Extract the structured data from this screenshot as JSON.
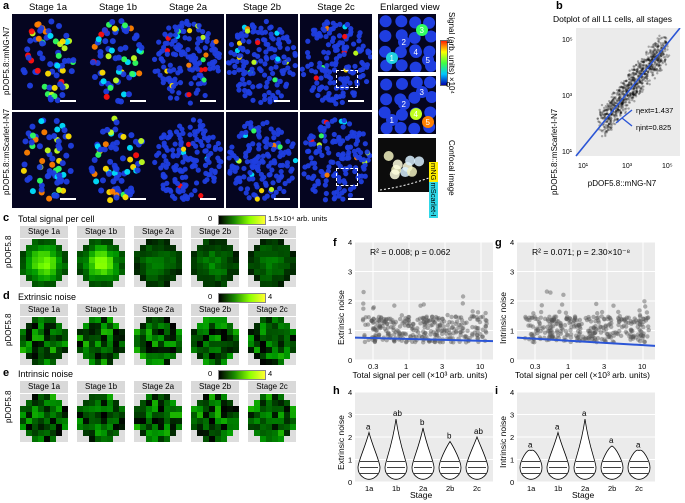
{
  "panel_a": {
    "label": "a",
    "stages": [
      "Stage 1a",
      "Stage 1b",
      "Stage 2a",
      "Stage 2b",
      "Stage 2c"
    ],
    "row1_label": "pDOF5.8::mNG-N7",
    "row2_label": "pDOF5.8::mScarlet-I-N7",
    "enlarged_title": "Enlarged view",
    "signal_label": "Signal (arb. units)",
    "signal_exp": "×10⁴",
    "scale_max": "1",
    "scale_min": "0",
    "cell_numbers": [
      "1",
      "2",
      "3",
      "4",
      "5"
    ],
    "confocal_label": "Confocal image",
    "channel1": "mNG",
    "channel2": "mScarlet-I"
  },
  "panel_b": {
    "label": "b",
    "title": "Dotplot of all L1 cells, all stages",
    "xlabel": "pDOF5.8::mNG-N7",
    "ylabel": "pDOF5.8::mScarlet-I-N7",
    "ticks": [
      "10¹",
      "10³",
      "10⁵"
    ],
    "eta_ext": "ηext=1.437",
    "eta_int": "ηint=0.825"
  },
  "panel_c": {
    "label": "c",
    "title": "Total signal per cell",
    "cbar_min": "0",
    "cbar_max": "1.5×10⁴ arb. units",
    "rowlab": "pDOF5.8"
  },
  "panel_d": {
    "label": "d",
    "title": "Extrinsic noise",
    "cbar_min": "0",
    "cbar_max": "4",
    "rowlab": "pDOF5.8"
  },
  "panel_e": {
    "label": "e",
    "title": "Intrinsic noise",
    "cbar_min": "0",
    "cbar_max": "4",
    "rowlab": "pDOF5.8"
  },
  "panel_f": {
    "label": "f",
    "stat": "R² = 0.008; p = 0.062",
    "ylabel": "Extrinsic noise",
    "xlabel": "Total signal per cell (×10³ arb. units)",
    "xticks": [
      "0.3",
      "1",
      "3",
      "10"
    ],
    "yticks": [
      "0",
      "1",
      "2",
      "3",
      "4"
    ]
  },
  "panel_g": {
    "label": "g",
    "stat": "R² = 0.071; p = 2.30×10⁻⁸",
    "ylabel": "Intrinsic noise",
    "xlabel": "Total signal per cell (×10³ arb. units)",
    "xticks": [
      "0.3",
      "1",
      "3",
      "10"
    ],
    "yticks": [
      "0",
      "1",
      "2",
      "3",
      "4"
    ]
  },
  "panel_h": {
    "label": "h",
    "ylabel": "Extrinsic noise",
    "xlabel": "Stage",
    "yticks": [
      "0",
      "1",
      "2",
      "3",
      "4"
    ],
    "categories": [
      "1a",
      "1b",
      "2a",
      "2b",
      "2c"
    ],
    "letters": [
      "a",
      "ab",
      "b",
      "b",
      "ab"
    ]
  },
  "panel_i": {
    "label": "i",
    "ylabel": "Intrinsic noise",
    "xlabel": "Stage",
    "yticks": [
      "0",
      "1",
      "2",
      "3",
      "4"
    ],
    "categories": [
      "1a",
      "1b",
      "2a",
      "2b",
      "2c"
    ],
    "letters": [
      "a",
      "a",
      "a",
      "a",
      "a"
    ]
  },
  "colors": {
    "background_tile": "#050520",
    "cell": "#1a35d6",
    "plot_bg": "#ebebeb",
    "regression": "#2b55d6"
  }
}
